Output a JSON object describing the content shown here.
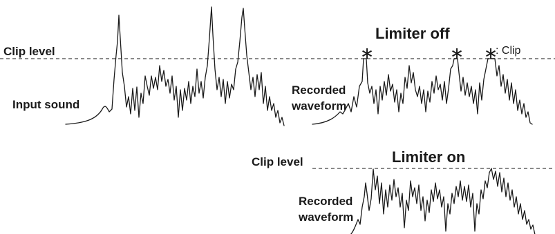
{
  "left_panel": {
    "clip_label": "Clip level",
    "input_label": "Input sound"
  },
  "limiter_off": {
    "title": "Limiter off",
    "recorded_label_line1": "Recorded",
    "recorded_label_line2": "waveform",
    "clip_marker": "∗",
    "clip_legend": ": Clip"
  },
  "limiter_on": {
    "title": "Limiter on",
    "clip_label": "Clip level",
    "recorded_label_line1": "Recorded",
    "recorded_label_line2": "waveform"
  },
  "colors": {
    "line": "#1a1a1a",
    "clip_line": "#8a8a8a",
    "background": "#ffffff"
  }
}
